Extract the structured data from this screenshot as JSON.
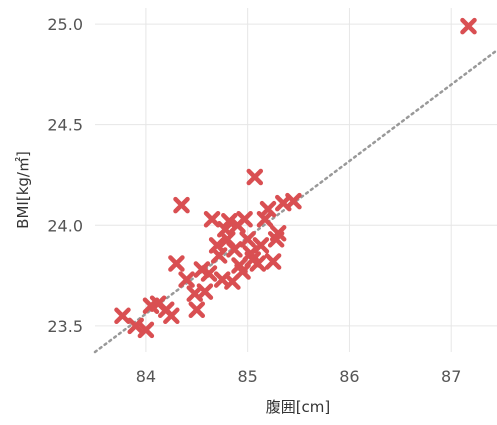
{
  "chart_data": {
    "type": "scatter",
    "title": "",
    "xlabel": "腹囲[cm]",
    "ylabel": "BMI[kg/㎡]",
    "xlim": [
      83.5,
      87.45
    ],
    "ylim": [
      23.37,
      25.08
    ],
    "x_ticks": [
      "84",
      "85",
      "86",
      "87"
    ],
    "y_ticks": [
      "23.5",
      "24.0",
      "24.5",
      "25.0"
    ],
    "x_tick_values": [
      84,
      85,
      86,
      87
    ],
    "y_tick_values": [
      23.5,
      24.0,
      24.5,
      25.0
    ],
    "grid": true,
    "marker": "x",
    "color": "#d94f52",
    "trendline": {
      "style": "dotted",
      "color": "#999999",
      "from": [
        83.5,
        23.37
      ],
      "to": [
        87.45,
        24.87
      ]
    },
    "points": [
      {
        "x": 83.77,
        "y": 23.55
      },
      {
        "x": 83.9,
        "y": 23.5
      },
      {
        "x": 84.0,
        "y": 23.48
      },
      {
        "x": 84.05,
        "y": 23.6
      },
      {
        "x": 84.12,
        "y": 23.61
      },
      {
        "x": 84.2,
        "y": 23.58
      },
      {
        "x": 84.25,
        "y": 23.55
      },
      {
        "x": 84.3,
        "y": 23.81
      },
      {
        "x": 84.35,
        "y": 24.1
      },
      {
        "x": 84.4,
        "y": 23.73
      },
      {
        "x": 84.48,
        "y": 23.66
      },
      {
        "x": 84.5,
        "y": 23.58
      },
      {
        "x": 84.55,
        "y": 23.78
      },
      {
        "x": 84.58,
        "y": 23.67
      },
      {
        "x": 84.62,
        "y": 23.76
      },
      {
        "x": 84.65,
        "y": 24.03
      },
      {
        "x": 84.7,
        "y": 23.9
      },
      {
        "x": 84.72,
        "y": 23.85
      },
      {
        "x": 84.75,
        "y": 23.73
      },
      {
        "x": 84.78,
        "y": 23.98
      },
      {
        "x": 84.8,
        "y": 23.93
      },
      {
        "x": 84.82,
        "y": 24.02
      },
      {
        "x": 84.85,
        "y": 23.72
      },
      {
        "x": 84.87,
        "y": 23.88
      },
      {
        "x": 84.9,
        "y": 24.0
      },
      {
        "x": 84.92,
        "y": 23.8
      },
      {
        "x": 84.95,
        "y": 23.77
      },
      {
        "x": 84.97,
        "y": 24.03
      },
      {
        "x": 85.0,
        "y": 23.93
      },
      {
        "x": 85.03,
        "y": 23.86
      },
      {
        "x": 85.05,
        "y": 23.83
      },
      {
        "x": 85.07,
        "y": 24.24
      },
      {
        "x": 85.1,
        "y": 23.81
      },
      {
        "x": 85.13,
        "y": 23.9
      },
      {
        "x": 85.17,
        "y": 24.03
      },
      {
        "x": 85.2,
        "y": 24.08
      },
      {
        "x": 85.25,
        "y": 23.82
      },
      {
        "x": 85.28,
        "y": 23.93
      },
      {
        "x": 85.3,
        "y": 23.96
      },
      {
        "x": 85.35,
        "y": 24.11
      },
      {
        "x": 85.45,
        "y": 24.12
      },
      {
        "x": 87.17,
        "y": 24.99
      }
    ]
  }
}
